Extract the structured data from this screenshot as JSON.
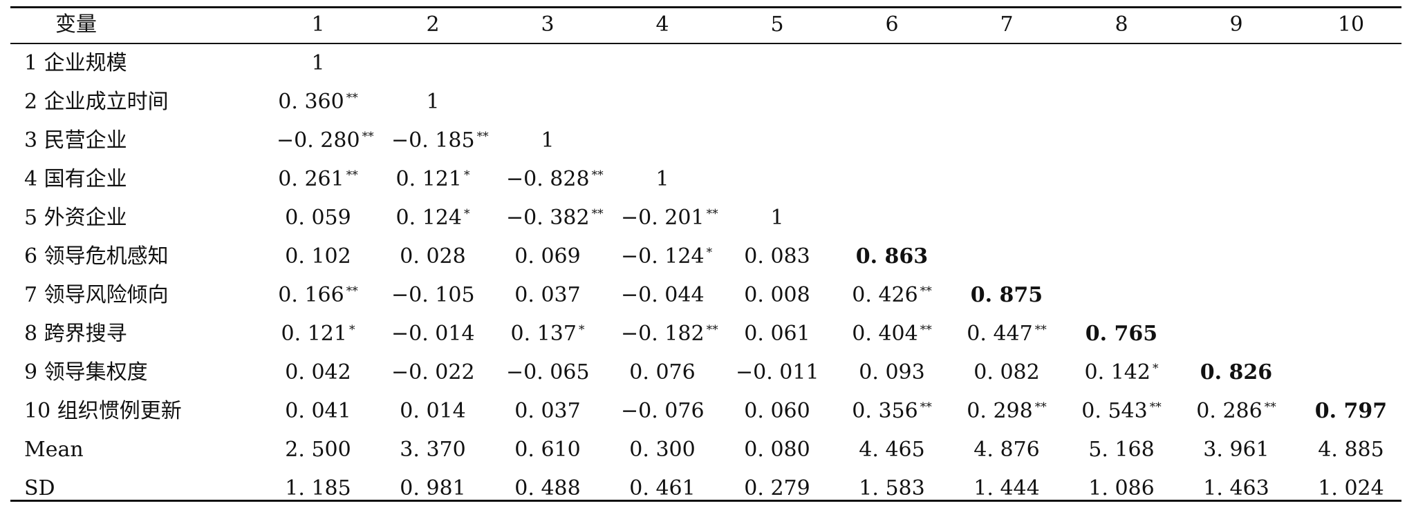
{
  "header": {
    "variable_label": "变量",
    "columns": [
      "1",
      "2",
      "3",
      "4",
      "5",
      "6",
      "7",
      "8",
      "9",
      "10"
    ]
  },
  "rows": [
    {
      "label": "1 企业规模",
      "cells": [
        {
          "v": "1",
          "s": ""
        }
      ]
    },
    {
      "label": "2 企业成立时间",
      "cells": [
        {
          "v": "0. 360",
          "s": "**"
        },
        {
          "v": "1",
          "s": ""
        }
      ]
    },
    {
      "label": "3 民营企业",
      "cells": [
        {
          "v": "−0. 280",
          "s": "**"
        },
        {
          "v": "−0. 185",
          "s": "**"
        },
        {
          "v": "1",
          "s": ""
        }
      ]
    },
    {
      "label": "4 国有企业",
      "cells": [
        {
          "v": "0. 261",
          "s": "**"
        },
        {
          "v": "0. 121",
          "s": "*"
        },
        {
          "v": "−0. 828",
          "s": "**"
        },
        {
          "v": "1",
          "s": ""
        }
      ]
    },
    {
      "label": "5 外资企业",
      "cells": [
        {
          "v": "0. 059",
          "s": ""
        },
        {
          "v": "0. 124",
          "s": "*"
        },
        {
          "v": "−0. 382",
          "s": "**"
        },
        {
          "v": "−0. 201",
          "s": "**"
        },
        {
          "v": "1",
          "s": ""
        }
      ]
    },
    {
      "label": "6 领导危机感知",
      "cells": [
        {
          "v": "0. 102",
          "s": ""
        },
        {
          "v": "0. 028",
          "s": ""
        },
        {
          "v": "0. 069",
          "s": ""
        },
        {
          "v": "−0. 124",
          "s": "*"
        },
        {
          "v": "0. 083",
          "s": ""
        },
        {
          "v": "0. 863",
          "s": "",
          "b": true
        }
      ]
    },
    {
      "label": "7 领导风险倾向",
      "cells": [
        {
          "v": "0. 166",
          "s": "**"
        },
        {
          "v": "−0. 105",
          "s": ""
        },
        {
          "v": "0. 037",
          "s": ""
        },
        {
          "v": "−0. 044",
          "s": ""
        },
        {
          "v": "0. 008",
          "s": ""
        },
        {
          "v": "0. 426",
          "s": "**"
        },
        {
          "v": "0. 875",
          "s": "",
          "b": true
        }
      ]
    },
    {
      "label": "8 跨界搜寻",
      "cells": [
        {
          "v": "0. 121",
          "s": "*"
        },
        {
          "v": "−0. 014",
          "s": ""
        },
        {
          "v": "0. 137",
          "s": "*"
        },
        {
          "v": "−0. 182",
          "s": "**"
        },
        {
          "v": "0. 061",
          "s": ""
        },
        {
          "v": "0. 404",
          "s": "**"
        },
        {
          "v": "0. 447",
          "s": "**"
        },
        {
          "v": "0. 765",
          "s": "",
          "b": true
        }
      ]
    },
    {
      "label": "9 领导集权度",
      "cells": [
        {
          "v": "0. 042",
          "s": ""
        },
        {
          "v": "−0. 022",
          "s": ""
        },
        {
          "v": "−0. 065",
          "s": ""
        },
        {
          "v": "0. 076",
          "s": ""
        },
        {
          "v": "−0. 011",
          "s": ""
        },
        {
          "v": "0. 093",
          "s": ""
        },
        {
          "v": "0. 082",
          "s": ""
        },
        {
          "v": "0. 142",
          "s": "*"
        },
        {
          "v": "0. 826",
          "s": "",
          "b": true
        }
      ]
    },
    {
      "label": "10 组织惯例更新",
      "cells": [
        {
          "v": "0. 041",
          "s": ""
        },
        {
          "v": "0. 014",
          "s": ""
        },
        {
          "v": "0. 037",
          "s": ""
        },
        {
          "v": "−0. 076",
          "s": ""
        },
        {
          "v": "0. 060",
          "s": ""
        },
        {
          "v": "0. 356",
          "s": "**"
        },
        {
          "v": "0. 298",
          "s": "**"
        },
        {
          "v": "0. 543",
          "s": "**"
        },
        {
          "v": "0. 286",
          "s": "**"
        },
        {
          "v": "0. 797",
          "s": "",
          "b": true
        }
      ]
    },
    {
      "label": "Mean",
      "cells": [
        {
          "v": "2. 500",
          "s": ""
        },
        {
          "v": "3. 370",
          "s": ""
        },
        {
          "v": "0. 610",
          "s": ""
        },
        {
          "v": "0. 300",
          "s": ""
        },
        {
          "v": "0. 080",
          "s": ""
        },
        {
          "v": "4. 465",
          "s": ""
        },
        {
          "v": "4. 876",
          "s": ""
        },
        {
          "v": "5. 168",
          "s": ""
        },
        {
          "v": "3. 961",
          "s": ""
        },
        {
          "v": "4. 885",
          "s": ""
        }
      ]
    },
    {
      "label": "SD",
      "cells": [
        {
          "v": "1. 185",
          "s": ""
        },
        {
          "v": "0. 981",
          "s": ""
        },
        {
          "v": "0. 488",
          "s": ""
        },
        {
          "v": "0. 461",
          "s": ""
        },
        {
          "v": "0. 279",
          "s": ""
        },
        {
          "v": "1. 583",
          "s": ""
        },
        {
          "v": "1. 444",
          "s": ""
        },
        {
          "v": "1. 086",
          "s": ""
        },
        {
          "v": "1. 463",
          "s": ""
        },
        {
          "v": "1. 024",
          "s": ""
        }
      ]
    }
  ]
}
